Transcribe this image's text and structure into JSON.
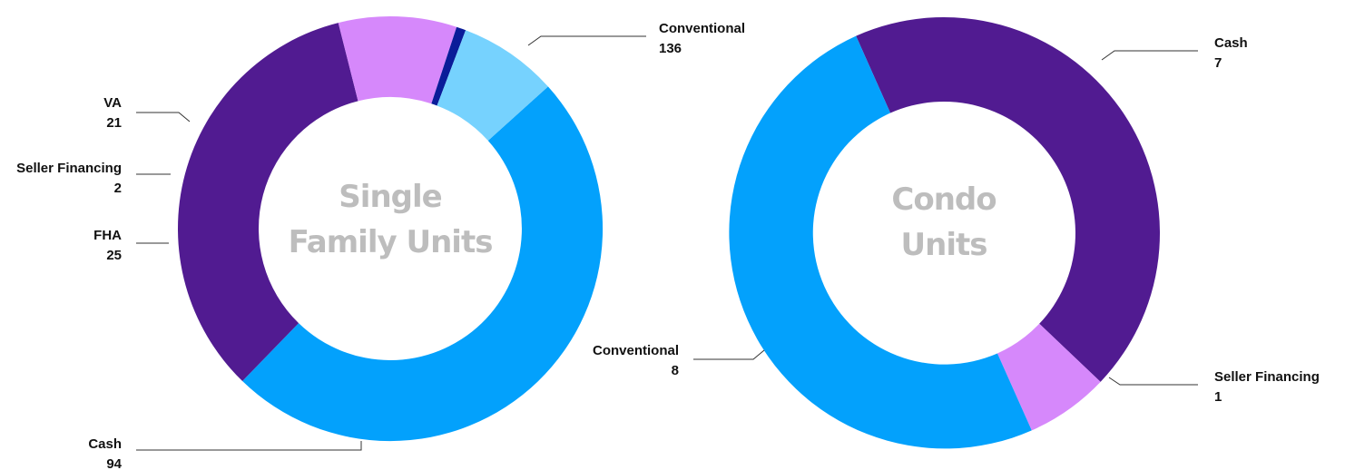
{
  "chart_data": [
    {
      "type": "pie",
      "variant": "donut",
      "center_label": [
        "Single",
        "Family Units"
      ],
      "slices": [
        {
          "label": "Conventional",
          "value": 136,
          "color": "#03a1fc"
        },
        {
          "label": "Cash",
          "value": 94,
          "color": "#511b91"
        },
        {
          "label": "FHA",
          "value": 25,
          "color": "#d688fb"
        },
        {
          "label": "Seller Financing",
          "value": 2,
          "color": "#0a1c99"
        },
        {
          "label": "VA",
          "value": 21,
          "color": "#76d2fe"
        }
      ]
    },
    {
      "type": "pie",
      "variant": "donut",
      "center_label": [
        "Condo",
        "Units"
      ],
      "slices": [
        {
          "label": "Cash",
          "value": 7,
          "color": "#511b91"
        },
        {
          "label": "Seller Financing",
          "value": 1,
          "color": "#d688fb"
        },
        {
          "label": "Conventional",
          "value": 8,
          "color": "#03a1fc"
        }
      ]
    }
  ]
}
